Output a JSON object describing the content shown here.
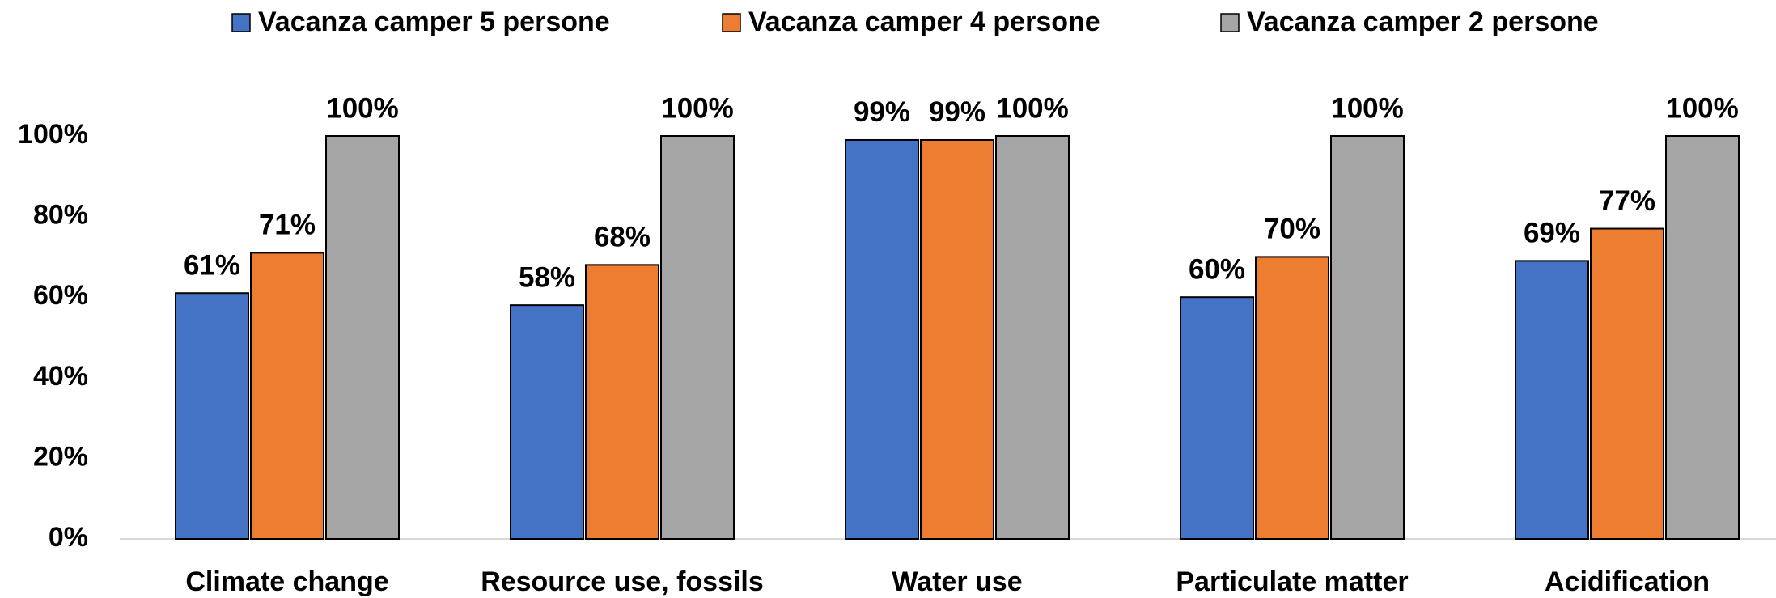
{
  "chart_data": {
    "type": "bar",
    "categories": [
      "Climate change",
      "Resource use, fossils",
      "Water use",
      "Particulate matter",
      "Acidification"
    ],
    "series": [
      {
        "name": "Vacanza camper 5 persone",
        "color": "#4472c4",
        "values": [
          61,
          58,
          99,
          60,
          69
        ],
        "value_labels": [
          "61%",
          "58%",
          "99%",
          "60%",
          "69%"
        ]
      },
      {
        "name": "Vacanza camper 4 persone",
        "color": "#ed7d31",
        "values": [
          71,
          68,
          99,
          70,
          77
        ],
        "value_labels": [
          "71%",
          "68%",
          "99%",
          "70%",
          "77%"
        ]
      },
      {
        "name": "Vacanza camper 2 persone",
        "color": "#a5a5a5",
        "values": [
          100,
          100,
          100,
          100,
          100
        ],
        "value_labels": [
          "100%",
          "100%",
          "100%",
          "100%",
          "100%"
        ]
      }
    ],
    "ylim": [
      0,
      100
    ],
    "yticks": [
      {
        "value": 0,
        "label": "0%"
      },
      {
        "value": 20,
        "label": "20%"
      },
      {
        "value": 40,
        "label": "40%"
      },
      {
        "value": 60,
        "label": "60%"
      },
      {
        "value": 80,
        "label": "80%"
      },
      {
        "value": 100,
        "label": "100%"
      }
    ],
    "legend": "top",
    "grid": false
  }
}
